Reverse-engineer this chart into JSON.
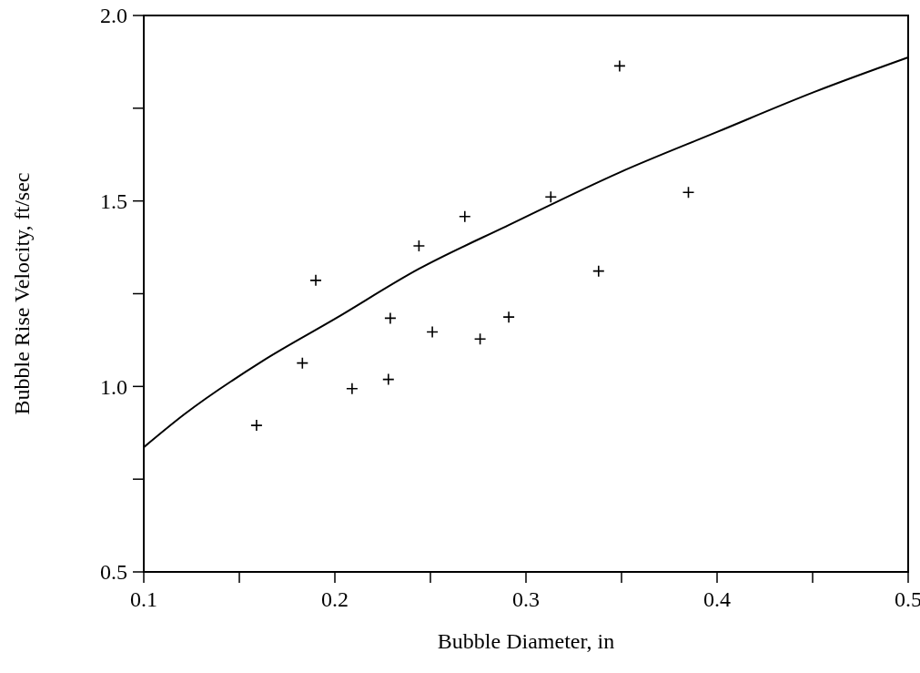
{
  "chart_data": {
    "type": "scatter",
    "xlabel": "Bubble Diameter, in",
    "ylabel": "Bubble Rise Velocity, ft/sec",
    "xlim": [
      0.1,
      0.5
    ],
    "ylim": [
      0.5,
      2.0
    ],
    "xticks": [
      0.1,
      {
        "value": 0.15,
        "label": null
      },
      0.2,
      {
        "value": 0.25,
        "label": null
      },
      0.3,
      {
        "value": 0.35,
        "label": null
      },
      0.4,
      {
        "value": 0.45,
        "label": null
      },
      0.5
    ],
    "yticks": [
      0.5,
      {
        "value": 0.75,
        "label": null
      },
      {
        "value": 1,
        "label": "1.0"
      },
      {
        "value": 1.25,
        "label": null
      },
      1.5,
      {
        "value": 1.75,
        "label": null
      },
      {
        "value": 2,
        "label": "2.0"
      }
    ],
    "grid": false,
    "series": [
      {
        "color": "#000000",
        "marker": "cross",
        "x": [
          0.159,
          0.183,
          0.19,
          0.209,
          0.228,
          0.229,
          0.244,
          0.251,
          0.268,
          0.276,
          0.291,
          0.313,
          0.338,
          0.349,
          0.385
        ],
        "values": [
          0.895,
          1.063,
          1.286,
          0.994,
          1.019,
          1.184,
          1.379,
          1.147,
          1.458,
          1.128,
          1.187,
          1.511,
          1.311,
          1.864,
          1.523
        ]
      },
      {
        "type": "line",
        "color": "#000000",
        "marker": "none",
        "line_style": "solid",
        "x": [
          0.1,
          0.121,
          0.162,
          0.2,
          0.244,
          0.291,
          0.349,
          0.4,
          0.451,
          0.5
        ],
        "values": [
          0.836,
          0.924,
          1.068,
          1.182,
          1.317,
          1.435,
          1.577,
          1.686,
          1.794,
          1.887
        ]
      }
    ]
  }
}
